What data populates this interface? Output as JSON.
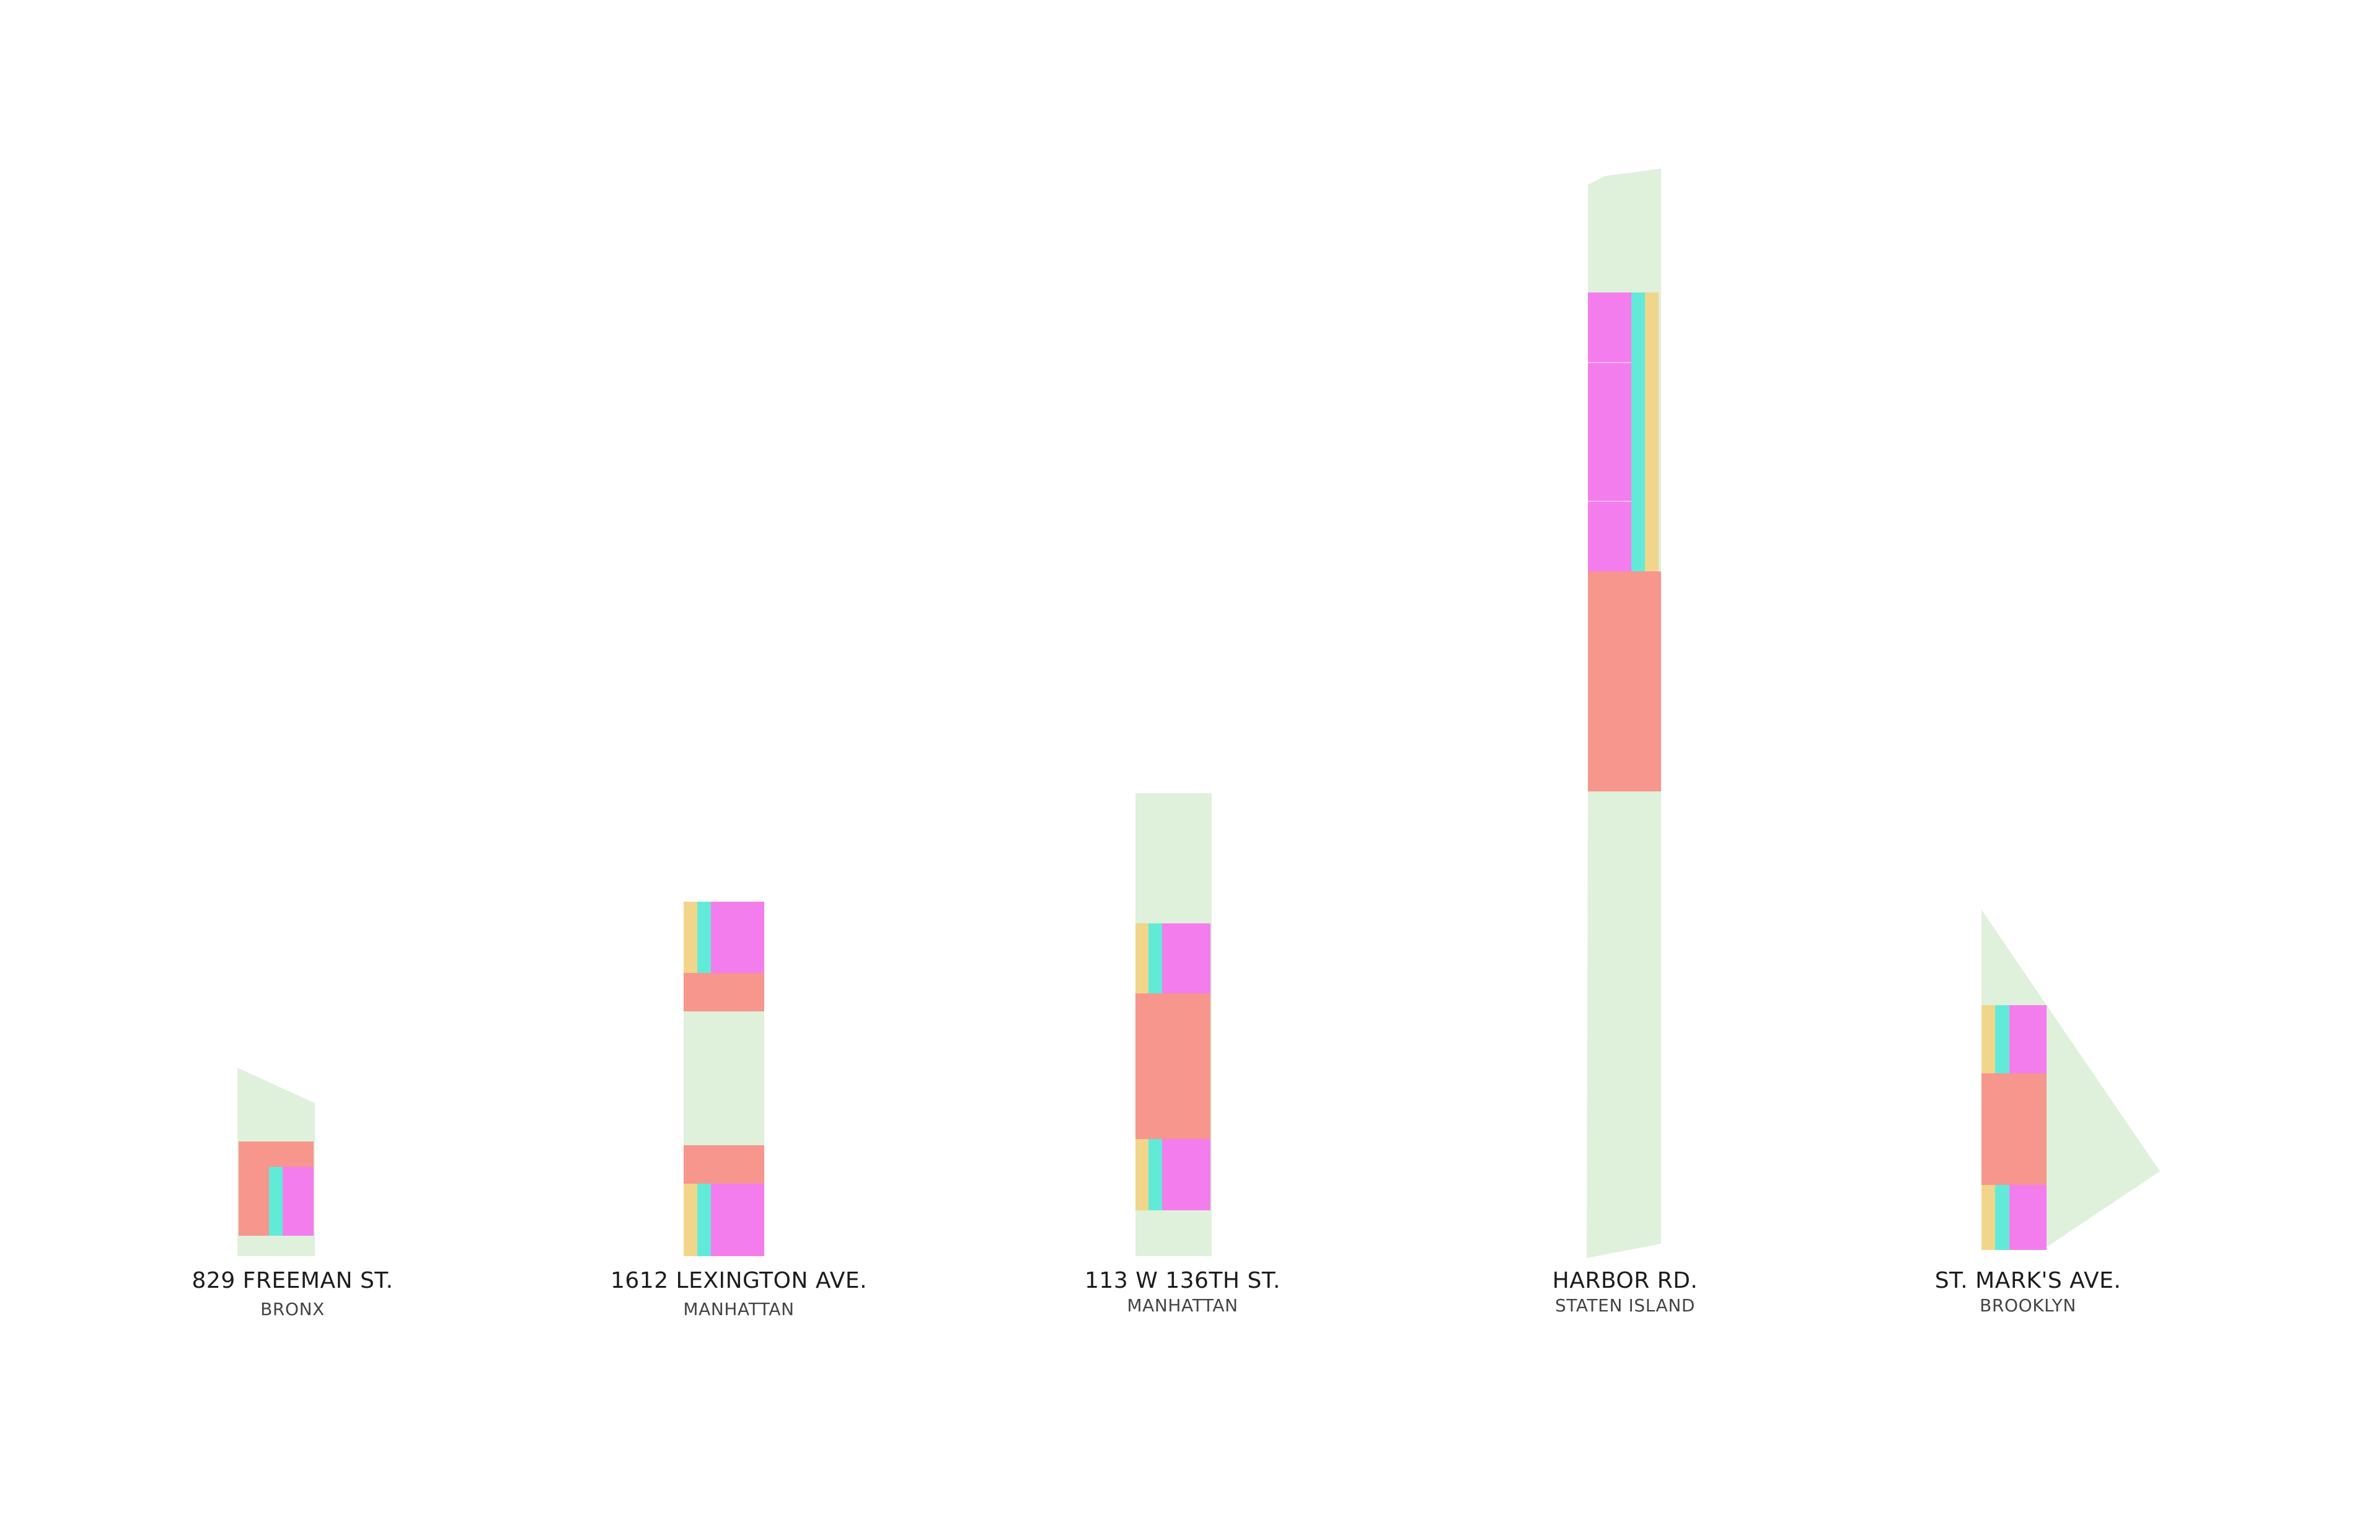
{
  "colors": {
    "green": "#dff0db",
    "salmon": "#f6968d",
    "magenta": "#f47ded",
    "cyan": "#62ead8",
    "yellow": "#f1d58a"
  },
  "buildings": [
    {
      "address": "829 FREEMAN ST.",
      "borough": "BRONX"
    },
    {
      "address": "1612 LEXINGTON AVE.",
      "borough": "MANHATTAN"
    },
    {
      "address": "113 W 136TH ST.",
      "borough": "MANHATTAN"
    },
    {
      "address": "HARBOR RD.",
      "borough": "STATEN ISLAND"
    },
    {
      "address": "ST. MARK'S AVE.",
      "borough": "BROOKLYN"
    }
  ]
}
